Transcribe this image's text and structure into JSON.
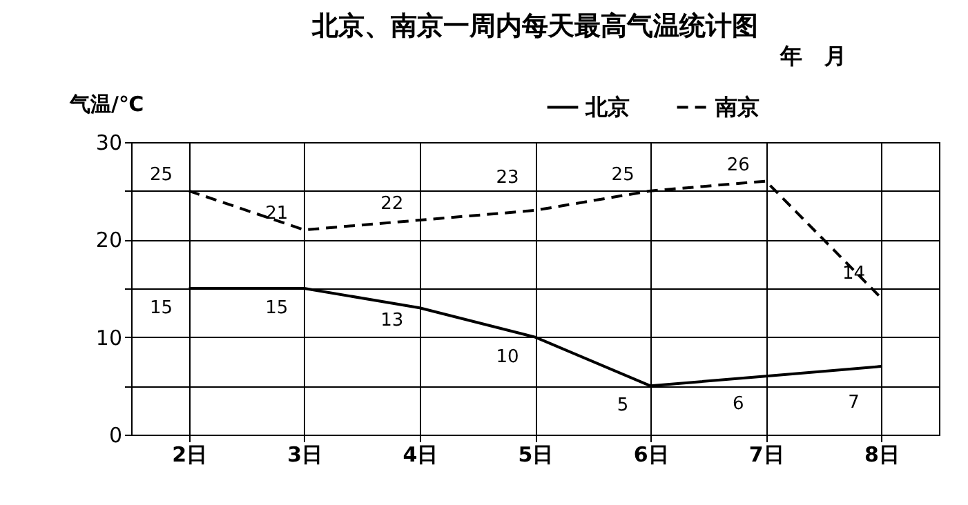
{
  "chart_data": {
    "type": "line",
    "title": "北京、南京一周内每天最高气温统计图",
    "ylabel": "气温/℃",
    "annotations": [
      "年　月"
    ],
    "categories": [
      "2日",
      "3日",
      "4日",
      "5日",
      "6日",
      "7日",
      "8日"
    ],
    "series": [
      {
        "name": "北京",
        "color": "#000000",
        "line_style": "solid",
        "values": [
          15,
          15,
          13,
          10,
          5,
          6,
          7
        ]
      },
      {
        "name": "南京",
        "color": "#000000",
        "line_style": "dashed",
        "values": [
          25,
          21,
          22,
          23,
          25,
          26,
          14
        ]
      }
    ],
    "ylim": [
      0,
      30
    ],
    "yticks": [
      0,
      {
        "value": 5,
        "label": null
      },
      10,
      {
        "value": 15,
        "label": null
      },
      20,
      {
        "value": 25,
        "label": null
      },
      30
    ],
    "grid": true,
    "legend": "top right",
    "data_labels": true,
    "marker": "none"
  }
}
